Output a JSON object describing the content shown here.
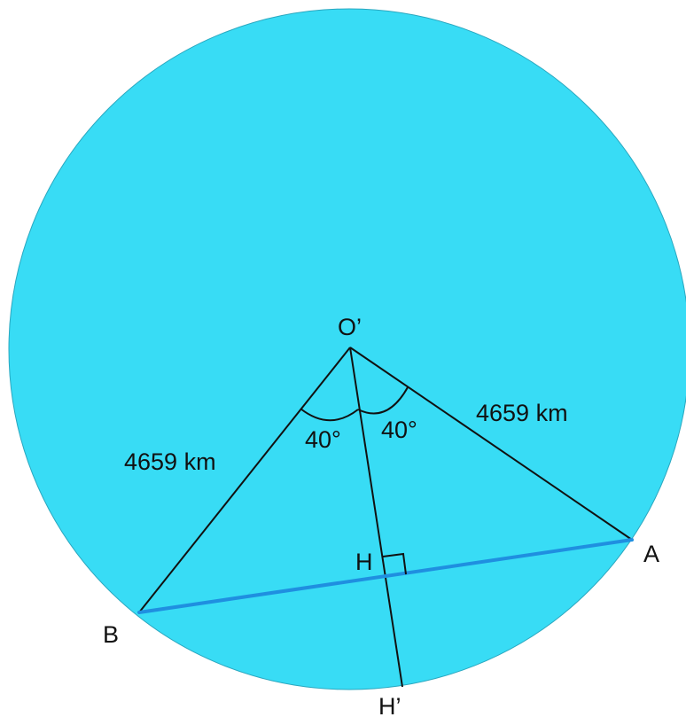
{
  "colors": {
    "circle_fill": "#38dcf5",
    "circle_stroke": "#2aa7bf",
    "line": "#111111",
    "chord": "#1f8fe0"
  },
  "labels": {
    "center": "O’",
    "point_a": "A",
    "point_b": "B",
    "foot_h": "H",
    "point_h_prime": "H’",
    "angle_left": "40°",
    "angle_right": "40°",
    "length_left": "4659 km",
    "length_right": "4659 km"
  }
}
